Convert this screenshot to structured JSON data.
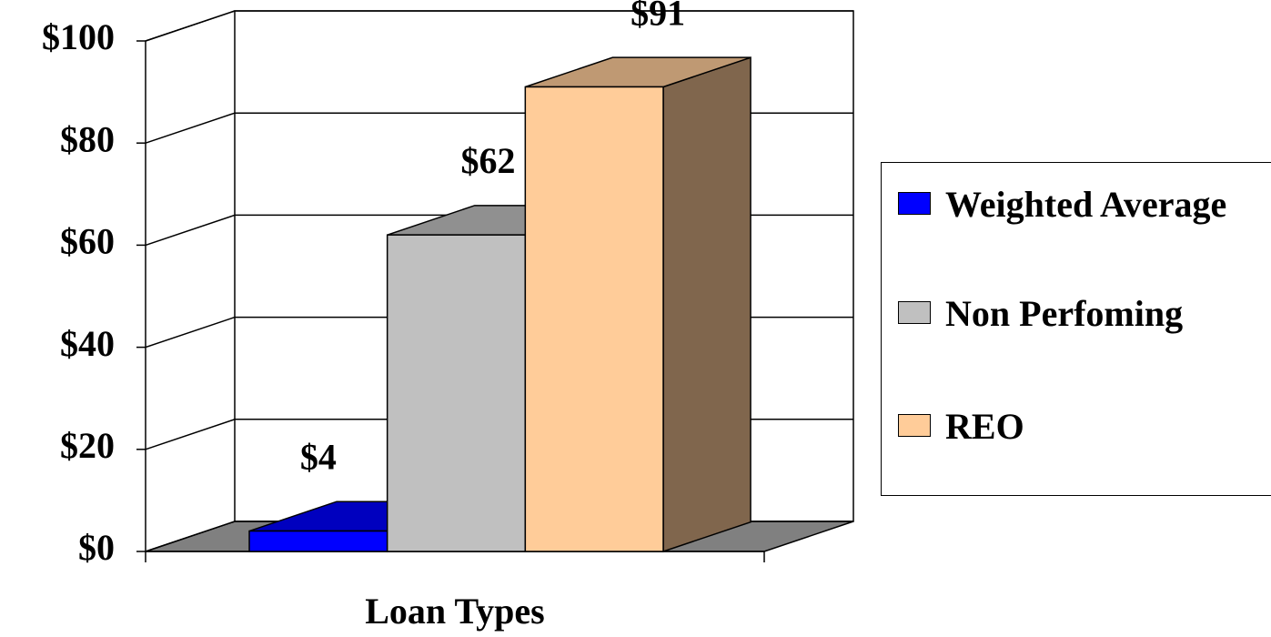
{
  "chart_data": {
    "type": "bar3d",
    "x_label": "Loan Types",
    "series": [
      {
        "name": "Weighted Average",
        "color": "#0000ff",
        "values": [
          4
        ],
        "value_labels": [
          "$4"
        ]
      },
      {
        "name": "Non Perfoming",
        "color": "#c0c0c0",
        "values": [
          62
        ],
        "value_labels": [
          "$62"
        ]
      },
      {
        "name": "REO",
        "color": "#ffcc99",
        "values": [
          91
        ],
        "value_labels": [
          "$91"
        ]
      }
    ],
    "ylim": [
      0,
      100
    ],
    "yticks": [
      {
        "value": 0,
        "label": "$0"
      },
      {
        "value": 20,
        "label": "$20"
      },
      {
        "value": 40,
        "label": "$40"
      },
      {
        "value": 60,
        "label": "$60"
      },
      {
        "value": 80,
        "label": "$80"
      },
      {
        "value": 100,
        "label": "$100"
      }
    ],
    "grid": true,
    "legend": "right"
  }
}
